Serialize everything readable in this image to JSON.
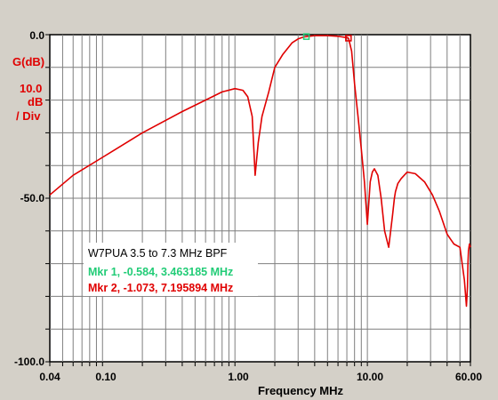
{
  "chart_data": {
    "type": "line",
    "title": "W7PUA 3.5 to 7.3 MHz BPF",
    "xlabel": "Frequency MHz",
    "ylabel": "G(dB)",
    "yscale_label": [
      "10.0",
      "dB",
      "/ Div"
    ],
    "x_scale": "log",
    "xlim": [
      0.04,
      60.0
    ],
    "ylim": [
      -100.0,
      0.0
    ],
    "grid": true,
    "x_tick_labels": [
      "0.04",
      "0.10",
      "1.00",
      "10.00",
      "60.00"
    ],
    "y_tick_labels": [
      "0.0",
      "-50.0",
      "-100.0"
    ],
    "series": [
      {
        "color": "#e00000",
        "x": [
          0.04,
          0.06,
          0.1,
          0.2,
          0.4,
          0.6,
          0.8,
          1.0,
          1.15,
          1.25,
          1.35,
          1.42,
          1.5,
          1.6,
          1.8,
          2.0,
          2.3,
          2.7,
          3.0,
          3.3,
          3.46,
          4.0,
          5.0,
          6.0,
          7.0,
          7.2,
          7.6,
          8.0,
          8.5,
          9.0,
          9.5,
          10.0,
          10.5,
          10.9,
          11.3,
          12.0,
          12.7,
          13.5,
          14.5,
          15.5,
          16.0,
          16.3,
          17.0,
          18.0,
          20.0,
          23.0,
          27.0,
          31.0,
          35.0,
          40.0,
          45.0,
          50.0,
          54.0,
          56.0,
          57.0,
          57.5,
          58.0,
          59.0,
          60.0
        ],
        "y": [
          -49.0,
          -43.0,
          -37.5,
          -30.0,
          -23.5,
          -20.0,
          -17.5,
          -16.5,
          -17.0,
          -19.0,
          -25.0,
          -43.0,
          -33.0,
          -25.0,
          -17.5,
          -10.0,
          -6.0,
          -2.5,
          -1.3,
          -0.7,
          -0.6,
          -0.3,
          -0.3,
          -0.5,
          -0.9,
          -1.1,
          -5.0,
          -15.0,
          -25.0,
          -35.0,
          -45.0,
          -58.0,
          -45.0,
          -42.0,
          -41.0,
          -43.0,
          -50.0,
          -60.0,
          -65.0,
          -55.0,
          -50.0,
          -48.0,
          -45.5,
          -44.0,
          -42.0,
          -42.5,
          -45.0,
          -49.0,
          -54.0,
          -61.0,
          -64.0,
          -65.0,
          -75.0,
          -83.0,
          -77.0,
          -70.0,
          -66.0,
          -64.0,
          -65.0
        ]
      }
    ],
    "markers": [
      {
        "label": "Mkr 1, -0.584, 3.463185 MHz",
        "x": 3.463185,
        "y": -0.584,
        "color": "#22cc77"
      },
      {
        "label": "Mkr 2, -1.073, 7.195894 MHz",
        "x": 7.195894,
        "y": -1.073,
        "color": "#e00000"
      }
    ]
  }
}
